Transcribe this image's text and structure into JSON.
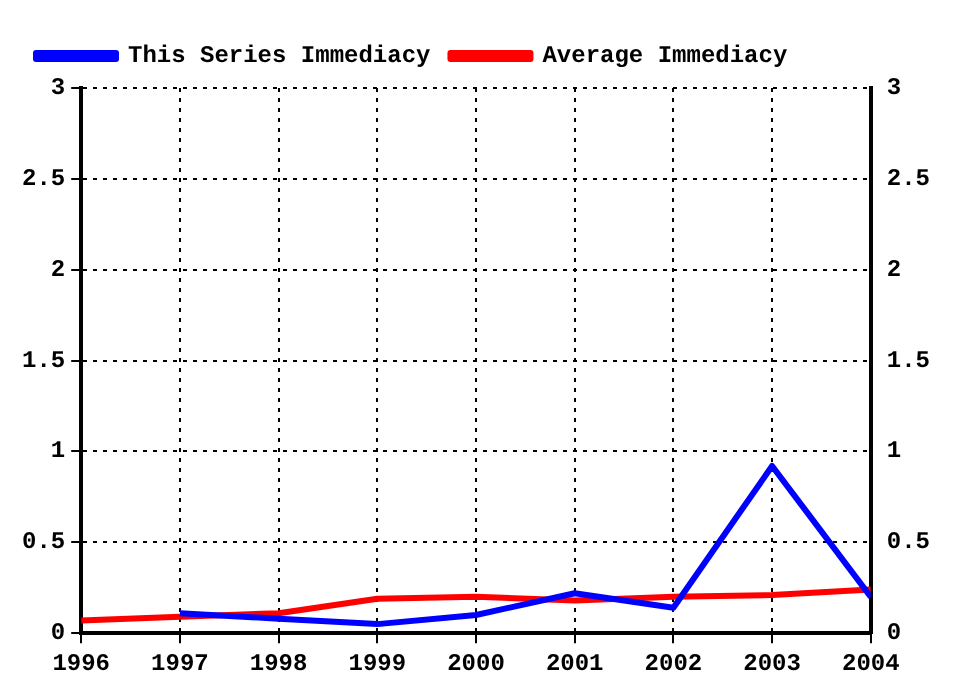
{
  "chart_data": {
    "type": "line",
    "x": [
      1996,
      1997,
      1998,
      1999,
      2000,
      2001,
      2002,
      2003,
      2004
    ],
    "series": [
      {
        "name": "This Series Immediacy",
        "color": "#0000ff",
        "values": [
          null,
          0.11,
          0.08,
          0.05,
          0.1,
          0.22,
          0.14,
          0.92,
          0.2
        ]
      },
      {
        "name": "Average Immediacy",
        "color": "#ff0000",
        "values": [
          0.07,
          0.09,
          0.11,
          0.19,
          0.2,
          0.18,
          0.2,
          0.21,
          0.24
        ]
      }
    ],
    "xlim": [
      1996,
      2004
    ],
    "xticks": [
      1996,
      1997,
      1998,
      1999,
      2000,
      2001,
      2002,
      2003,
      2004
    ],
    "ylim": [
      0,
      3
    ],
    "yticks": [
      0,
      0.5,
      1,
      1.5,
      2,
      2.5,
      3
    ],
    "y2lim": [
      0,
      3
    ],
    "y2ticks": [
      0,
      0.5,
      1,
      1.5,
      2,
      2.5,
      3
    ],
    "grid": true,
    "legend": "top left",
    "marker": "none",
    "line_style": "solid"
  }
}
